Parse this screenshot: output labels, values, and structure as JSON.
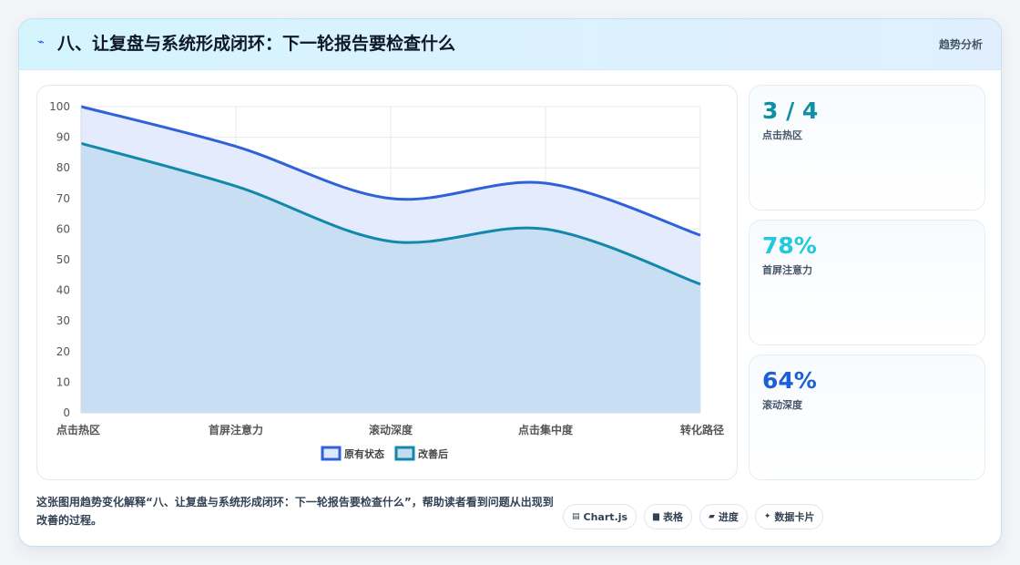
{
  "header": {
    "title_icon": "⌁",
    "title": "八、让复盘与系统形成闭环：下一轮报告要检查什么",
    "tag": "趋势分析"
  },
  "stats": [
    {
      "value": "3 / 4",
      "label": "点击热区",
      "color": "#0e8fa6"
    },
    {
      "value": "78%",
      "label": "首屏注意力",
      "color": "#22c9dd"
    },
    {
      "value": "64%",
      "label": "滚动深度",
      "color": "#1d5fd6"
    }
  ],
  "footer": {
    "description": "这张图用趋势变化解释“八、让复盘与系统形成闭环：下一轮报告要检查什么”，帮助读者看到问题从出现到改善的过程。"
  },
  "chips": [
    {
      "icon": "▤",
      "label": "Chart.js"
    },
    {
      "icon": "▆",
      "label": "表格"
    },
    {
      "icon": "▰",
      "label": "进度"
    },
    {
      "icon": "✦",
      "label": "数据卡片"
    }
  ],
  "chart_data": {
    "type": "area",
    "categories": [
      "点击热区",
      "首屏注意力",
      "滚动深度",
      "点击集中度",
      "转化路径"
    ],
    "series": [
      {
        "name": "原有状态",
        "values": [
          100,
          87,
          70,
          75,
          58
        ],
        "color": "#2f62d8",
        "fill": "#dfe8fb"
      },
      {
        "name": "改善后",
        "values": [
          88,
          74,
          56,
          60,
          42
        ],
        "color": "#1289aa",
        "fill": "#c3dcf0"
      }
    ],
    "ylim": [
      0,
      100
    ],
    "yticks": [
      0,
      10,
      20,
      30,
      40,
      50,
      60,
      70,
      80,
      90,
      100
    ],
    "grid": true,
    "legend": "bottom"
  }
}
